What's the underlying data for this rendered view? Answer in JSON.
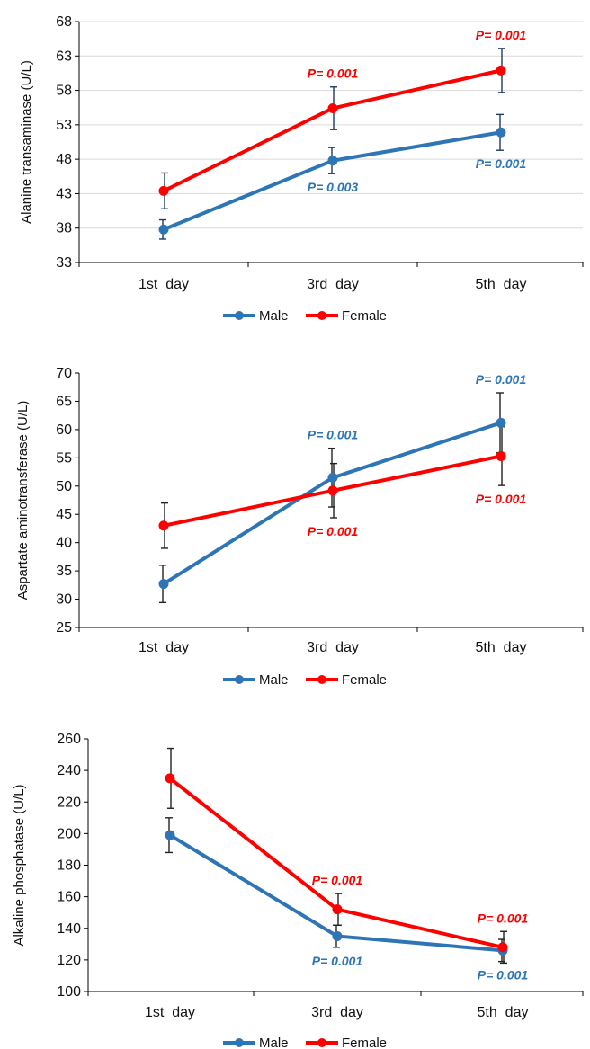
{
  "chart_data": [
    {
      "type": "line",
      "ylabel": "Alanine transaminase (U/L)",
      "xlabel": "",
      "categories": [
        "1st  day",
        "3rd  day",
        "5th  day"
      ],
      "ylim": [
        33,
        68
      ],
      "yticks": [
        33,
        38,
        43,
        48,
        53,
        58,
        63,
        68
      ],
      "grid": true,
      "legend_position": "bottom",
      "series": [
        {
          "name": "Male",
          "color": "#2E75B6",
          "values": [
            37.8,
            47.8,
            51.9
          ],
          "errors": [
            1.4,
            1.9,
            2.6
          ]
        },
        {
          "name": "Female",
          "color": "#FF0000",
          "values": [
            43.4,
            55.4,
            60.9
          ],
          "errors": [
            2.6,
            3.1,
            3.2
          ]
        }
      ],
      "annotations": [
        {
          "series": "Female",
          "index": 1,
          "text": "P= 0.001",
          "placement": "above"
        },
        {
          "series": "Female",
          "index": 2,
          "text": "P= 0.001",
          "placement": "above"
        },
        {
          "series": "Male",
          "index": 1,
          "text": "P= 0.003",
          "placement": "below"
        },
        {
          "series": "Male",
          "index": 2,
          "text": "P= 0.001",
          "placement": "below"
        }
      ]
    },
    {
      "type": "line",
      "ylabel": "Aspartate aminotransferase (U/L)",
      "xlabel": "",
      "categories": [
        "1st  day",
        "3rd  day",
        "5th  day"
      ],
      "ylim": [
        25,
        70
      ],
      "yticks": [
        25,
        30,
        35,
        40,
        45,
        50,
        55,
        60,
        65,
        70
      ],
      "grid": false,
      "legend_position": "bottom",
      "series": [
        {
          "name": "Male",
          "color": "#2E75B6",
          "values": [
            32.7,
            51.5,
            61.2
          ],
          "errors": [
            3.3,
            5.2,
            5.3
          ]
        },
        {
          "name": "Female",
          "color": "#FF0000",
          "values": [
            43.0,
            49.2,
            55.3
          ],
          "errors": [
            4.0,
            4.8,
            5.2
          ]
        }
      ],
      "annotations": [
        {
          "series": "Male",
          "index": 1,
          "text": "P= 0.001",
          "placement": "above"
        },
        {
          "series": "Male",
          "index": 2,
          "text": "P= 0.001",
          "placement": "above"
        },
        {
          "series": "Female",
          "index": 1,
          "text": "P= 0.001",
          "placement": "below"
        },
        {
          "series": "Female",
          "index": 2,
          "text": "P= 0.001",
          "placement": "below"
        }
      ]
    },
    {
      "type": "line",
      "ylabel": "Alkaline phosphatase (U/L)",
      "xlabel": "",
      "categories": [
        "1st  day",
        "3rd  day",
        "5th  day"
      ],
      "ylim": [
        100,
        260
      ],
      "yticks": [
        100,
        120,
        140,
        160,
        180,
        200,
        220,
        240,
        260
      ],
      "grid": false,
      "legend_position": "bottom",
      "series": [
        {
          "name": "Male",
          "color": "#2E75B6",
          "values": [
            199,
            135,
            126
          ],
          "errors": [
            11,
            7,
            7
          ]
        },
        {
          "name": "Female",
          "color": "#FF0000",
          "values": [
            235,
            152,
            128
          ],
          "errors": [
            19,
            10,
            10
          ]
        }
      ],
      "annotations": [
        {
          "series": "Female",
          "index": 1,
          "text": "P= 0.001",
          "placement": "above"
        },
        {
          "series": "Female",
          "index": 2,
          "text": "P= 0.001",
          "placement": "above"
        },
        {
          "series": "Male",
          "index": 1,
          "text": "P= 0.001",
          "placement": "below"
        },
        {
          "series": "Male",
          "index": 2,
          "text": "P= 0.001",
          "placement": "below"
        }
      ]
    }
  ]
}
